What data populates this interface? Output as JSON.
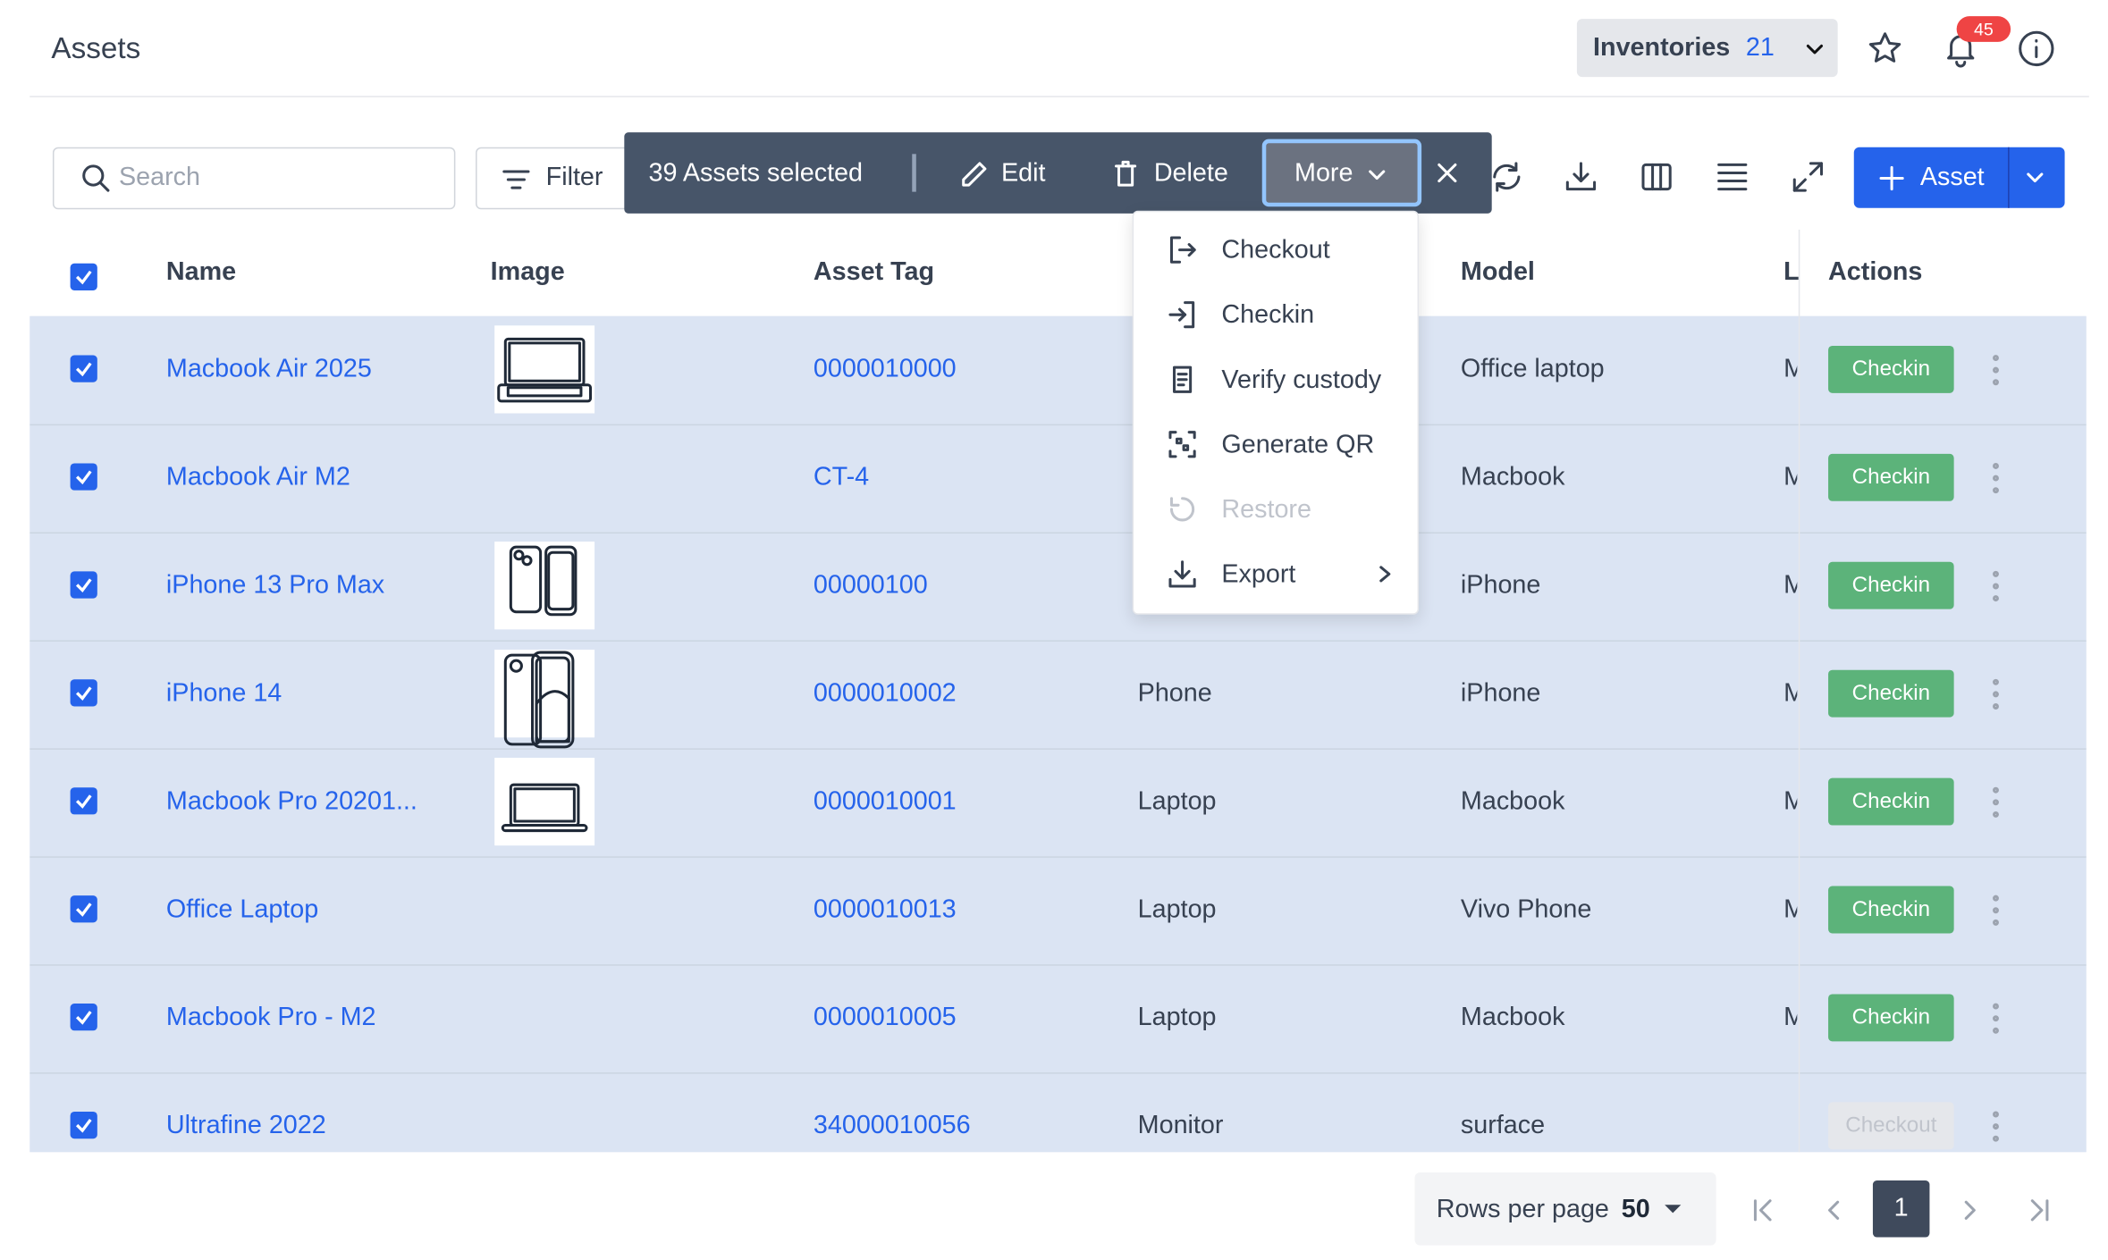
{
  "header": {
    "title": "Assets",
    "inventories_label": "Inventories",
    "inventories_count": "21",
    "notification_count": "45"
  },
  "toolbar": {
    "search_placeholder": "Search",
    "filter": "Filter",
    "add_button": "Asset"
  },
  "selection_bar": {
    "text": "39 Assets selected",
    "edit": "Edit",
    "delete": "Delete",
    "more": "More"
  },
  "menu": {
    "items": [
      "Checkout",
      "Checkin",
      "Verify custody",
      "Generate QR",
      "Restore",
      "Export"
    ]
  },
  "table": {
    "headers": [
      "Name",
      "Image",
      "Asset Tag",
      null,
      "Model",
      "L",
      "Actions"
    ],
    "rows": [
      [
        "Macbook Air 2025",
        "0000010000",
        null,
        "Office laptop",
        "M",
        "Checkin"
      ],
      [
        "Macbook Air M2",
        "CT-4",
        null,
        "Macbook",
        "M",
        "Checkin"
      ],
      [
        "iPhone 13 Pro Max",
        "00000100",
        null,
        "iPhone",
        "M",
        "Checkin"
      ],
      [
        "iPhone 14",
        "0000010002",
        "Phone",
        "iPhone",
        "M",
        "Checkin"
      ],
      [
        "Macbook Pro 20201...",
        "0000010001",
        "Laptop",
        "Macbook",
        "M",
        "Checkin"
      ],
      [
        "Office Laptop",
        "0000010013",
        "Laptop",
        "Vivo Phone",
        "M",
        "Checkin"
      ],
      [
        "Macbook Pro - M2",
        "0000010005",
        "Laptop",
        "Macbook",
        "M",
        "Checkin"
      ],
      [
        "Ultrafine 2022",
        "34000010056",
        "Monitor",
        "surface",
        null,
        "Checkout"
      ]
    ]
  },
  "pagination": {
    "rows_per_page_label": "Rows per page",
    "rows_per_page": "50",
    "page": "1"
  }
}
